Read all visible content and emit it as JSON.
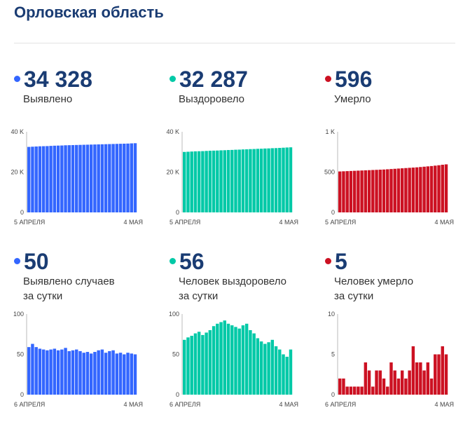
{
  "page": {
    "title": "Орловская область"
  },
  "panels": [
    {
      "id": "detected",
      "value": "34 328",
      "label_lines": [
        "Выявлено"
      ],
      "color": "#3366ff",
      "chart_data": {
        "type": "bar",
        "y_ticks": [
          "0",
          "20 K",
          "40 K"
        ],
        "ylim": [
          0,
          40000
        ],
        "x_start_label": "5 АПРЕЛЯ",
        "x_end_label": "4 МАЯ",
        "values": [
          32500,
          32600,
          32700,
          32800,
          32850,
          32900,
          33000,
          33100,
          33150,
          33200,
          33300,
          33350,
          33400,
          33450,
          33500,
          33550,
          33600,
          33650,
          33700,
          33750,
          33800,
          33850,
          33900,
          33950,
          34000,
          34050,
          34100,
          34150,
          34250,
          34328
        ]
      }
    },
    {
      "id": "recovered",
      "value": "32 287",
      "label_lines": [
        "Выздоровело"
      ],
      "color": "#00c9a7",
      "chart_data": {
        "type": "bar",
        "y_ticks": [
          "0",
          "20 K",
          "40 K"
        ],
        "ylim": [
          0,
          40000
        ],
        "x_start_label": "5 АПРЕЛЯ",
        "x_end_label": "4 МАЯ",
        "values": [
          30000,
          30100,
          30200,
          30300,
          30350,
          30400,
          30500,
          30600,
          30650,
          30700,
          30800,
          30850,
          30950,
          31000,
          31100,
          31150,
          31250,
          31300,
          31400,
          31450,
          31550,
          31600,
          31700,
          31750,
          31850,
          31900,
          32000,
          32100,
          32200,
          32287
        ]
      }
    },
    {
      "id": "deaths",
      "value": "596",
      "label_lines": [
        "Умерло"
      ],
      "color": "#cc1122",
      "chart_data": {
        "type": "bar",
        "y_ticks": [
          "0",
          "500",
          "1 K"
        ],
        "ylim": [
          0,
          1000
        ],
        "x_start_label": "5 АПРЕЛЯ",
        "x_end_label": "4 МАЯ",
        "values": [
          508,
          510,
          512,
          514,
          516,
          518,
          520,
          522,
          524,
          526,
          528,
          530,
          532,
          535,
          538,
          541,
          544,
          547,
          550,
          553,
          556,
          559,
          563,
          567,
          571,
          575,
          580,
          585,
          591,
          596
        ]
      }
    },
    {
      "id": "detected-daily",
      "value": "50",
      "label_lines": [
        "Выявлено случаев",
        "за сутки"
      ],
      "color": "#3366ff",
      "chart_data": {
        "type": "bar",
        "y_ticks": [
          "0",
          "50",
          "100"
        ],
        "ylim": [
          0,
          100
        ],
        "x_start_label": "6 АПРЕЛЯ",
        "x_end_label": "4 МАЯ",
        "values": [
          59,
          63,
          59,
          57,
          56,
          55,
          56,
          57,
          55,
          56,
          58,
          54,
          55,
          56,
          54,
          52,
          53,
          51,
          53,
          55,
          56,
          52,
          54,
          55,
          51,
          52,
          50,
          52,
          51,
          50
        ]
      }
    },
    {
      "id": "recovered-daily",
      "value": "56",
      "label_lines": [
        "Человек выздоровело",
        "за сутки"
      ],
      "color": "#00c9a7",
      "chart_data": {
        "type": "bar",
        "y_ticks": [
          "0",
          "50",
          "100"
        ],
        "ylim": [
          0,
          100
        ],
        "x_start_label": "6 АПРЕЛЯ",
        "x_end_label": "4 МАЯ",
        "values": [
          68,
          71,
          73,
          76,
          78,
          74,
          77,
          80,
          85,
          88,
          90,
          92,
          88,
          86,
          84,
          82,
          86,
          88,
          80,
          76,
          70,
          66,
          63,
          65,
          68,
          60,
          56,
          50,
          47,
          56
        ]
      }
    },
    {
      "id": "deaths-daily",
      "value": "5",
      "label_lines": [
        "Человек умерло",
        "за сутки"
      ],
      "color": "#cc1122",
      "chart_data": {
        "type": "bar",
        "y_ticks": [
          "0",
          "5",
          "10"
        ],
        "ylim": [
          0,
          10
        ],
        "x_start_label": "6 АПРЕЛЯ",
        "x_end_label": "4 МАЯ",
        "values": [
          2,
          2,
          1,
          1,
          1,
          1,
          1,
          4,
          3,
          1,
          3,
          3,
          2,
          1,
          4,
          3,
          2,
          3,
          2,
          3,
          6,
          4,
          4,
          3,
          4,
          2,
          5,
          5,
          6,
          5
        ]
      }
    }
  ]
}
